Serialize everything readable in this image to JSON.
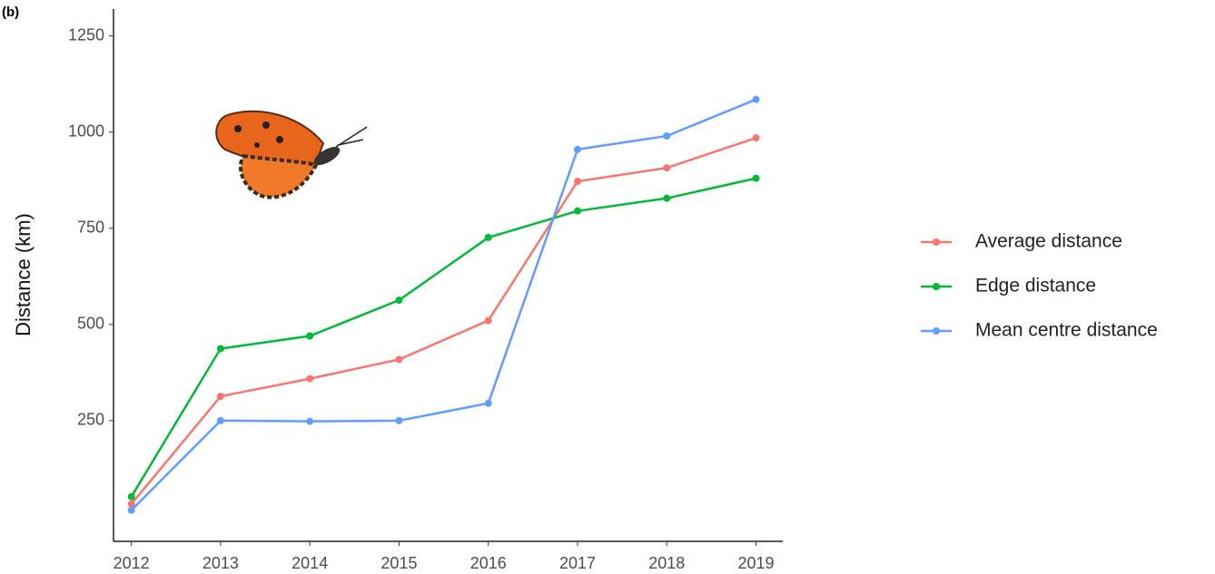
{
  "chart_data": {
    "type": "line",
    "title": "(b)",
    "y_label": "Distance (km)",
    "x": [
      2012,
      2013,
      2014,
      2015,
      2016,
      2017,
      2018,
      2019
    ],
    "series": [
      {
        "name": "Average distance",
        "color": "#F8766D",
        "values": [
          33,
          313,
          359,
          409,
          510,
          872,
          907,
          985
        ]
      },
      {
        "name": "Edge distance",
        "color": "#00BA38",
        "values": [
          52,
          437,
          470,
          563,
          726,
          795,
          828,
          880
        ]
      },
      {
        "name": "Mean centre distance",
        "color": "#619CFF",
        "values": [
          17,
          250,
          248,
          250,
          295,
          955,
          990,
          1085
        ]
      }
    ],
    "xlim": [
      2011.8,
      2019.3
    ],
    "xticks": [
      2012,
      2013,
      2014,
      2015,
      2016,
      2017,
      2018,
      2019
    ],
    "ylim": [
      -64,
      1320
    ],
    "yticks": [
      250,
      500,
      750,
      1000,
      1250
    ],
    "grid": false,
    "legend": "right"
  }
}
